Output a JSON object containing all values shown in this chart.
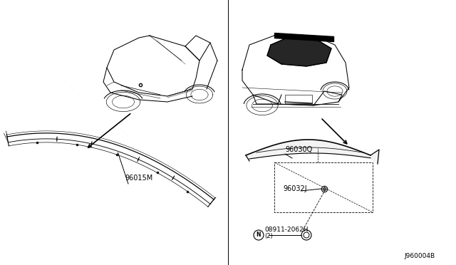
{
  "background_color": "#ffffff",
  "line_color": "#000000",
  "part_labels": {
    "front_spoiler": "96015M",
    "rear_spoiler": "96030Q",
    "clip": "96032J",
    "nut": "08911-2062H",
    "nut_qty": "(2)"
  },
  "diagram_id": "J960004B",
  "label_fontsize": 7,
  "small_fontsize": 6.5
}
